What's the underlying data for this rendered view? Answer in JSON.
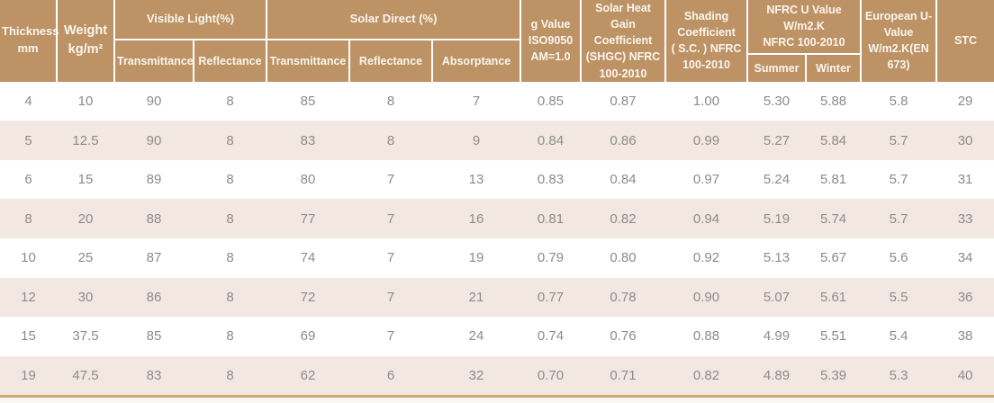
{
  "table": {
    "header": {
      "thickness": "Thickness\nmm",
      "weight": "Weight\nkg/m²",
      "visible_light_group": "Visible Light(%)",
      "visible_light_transmittance": "Transmittance",
      "visible_light_reflectance": "Reflectance",
      "solar_direct_group": "Solar  Direct (%)",
      "solar_direct_transmittance": "Transmittance",
      "solar_direct_reflectance": "Reflectance",
      "solar_direct_absorptance": "Absorptance",
      "g_value": "g Value\nISO9050\nAM=1.0",
      "shgc": "Solar Heat Gain\nCoefficient\n(SHGC) NFRC\n100-2010",
      "shading_coefficient": "Shading\nCoefficient\n( S.C. ) NFRC\n100-2010",
      "nfrc_u_value_group": "NFRC U Value\nW/m2.K\nNFRC 100-2010",
      "nfrc_summer": "Summer",
      "nfrc_winter": "Winter",
      "european_u_value": "European U-\nValue\nW/m2.K(EN\n673)",
      "stc": "STC"
    },
    "rows": [
      [
        "4",
        "10",
        "90",
        "8",
        "85",
        "8",
        "7",
        "0.85",
        "0.87",
        "1.00",
        "5.30",
        "5.88",
        "5.8",
        "29"
      ],
      [
        "5",
        "12.5",
        "90",
        "8",
        "83",
        "8",
        "9",
        "0.84",
        "0.86",
        "0.99",
        "5.27",
        "5.84",
        "5.7",
        "30"
      ],
      [
        "6",
        "15",
        "89",
        "8",
        "80",
        "7",
        "13",
        "0.83",
        "0.84",
        "0.97",
        "5.24",
        "5.81",
        "5.7",
        "31"
      ],
      [
        "8",
        "20",
        "88",
        "8",
        "77",
        "7",
        "16",
        "0.81",
        "0.82",
        "0.94",
        "5.19",
        "5.74",
        "5.7",
        "33"
      ],
      [
        "10",
        "25",
        "87",
        "8",
        "74",
        "7",
        "19",
        "0.79",
        "0.80",
        "0.92",
        "5.13",
        "5.67",
        "5.6",
        "34"
      ],
      [
        "12",
        "30",
        "86",
        "8",
        "72",
        "7",
        "21",
        "0.77",
        "0.78",
        "0.90",
        "5.07",
        "5.61",
        "5.5",
        "36"
      ],
      [
        "15",
        "37.5",
        "85",
        "8",
        "69",
        "7",
        "24",
        "0.74",
        "0.76",
        "0.88",
        "4.99",
        "5.51",
        "5.4",
        "38"
      ],
      [
        "19",
        "47.5",
        "83",
        "8",
        "62",
        "6",
        "32",
        "0.70",
        "0.71",
        "0.82",
        "4.89",
        "5.39",
        "5.3",
        "40"
      ]
    ],
    "colors": {
      "header_background": "#bd9265",
      "header_text": "#faf6ef",
      "row_alt_background": "#f3e8e1",
      "row_background": "#ffffff",
      "cell_text": "#8d8b88",
      "bottom_rule": "#cba876"
    }
  }
}
